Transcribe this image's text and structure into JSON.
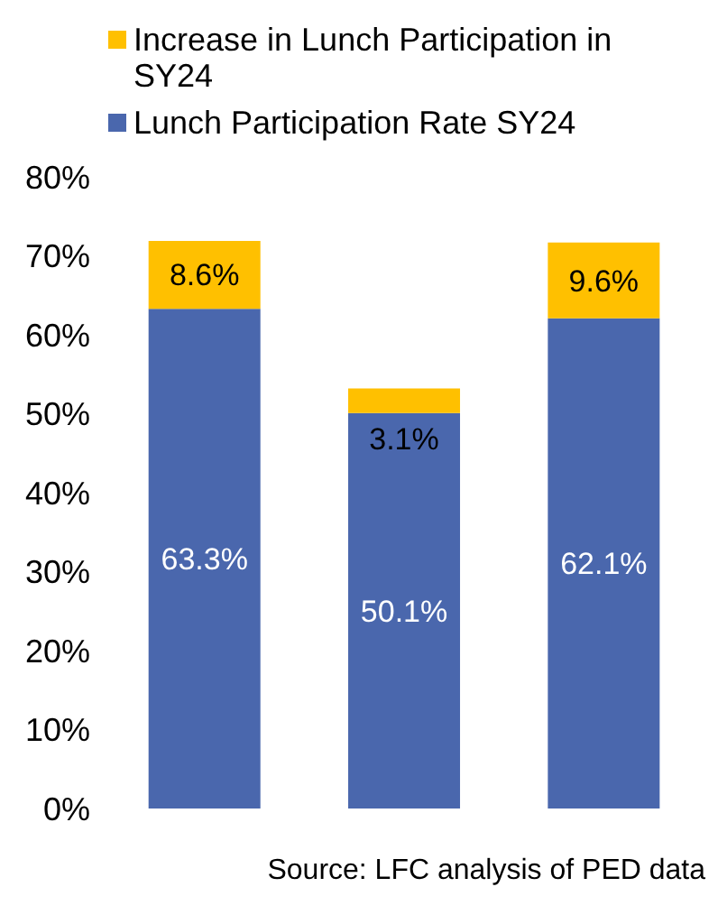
{
  "chart_data": {
    "type": "bar",
    "stacked": true,
    "categories": [
      null,
      null,
      null
    ],
    "series": [
      {
        "name": "Lunch Participation Rate SY24",
        "color": "#4a67ad",
        "values": [
          63.3,
          50.1,
          62.1
        ],
        "value_labels": [
          "63.3%",
          "50.1%",
          "62.1%"
        ]
      },
      {
        "name": "Increase in Lunch Participation in SY24",
        "color": "#ffc000",
        "values": [
          8.6,
          3.1,
          9.6
        ],
        "value_labels": [
          "8.6%",
          "3.1%",
          "9.6%"
        ]
      }
    ],
    "ylim": [
      0,
      80
    ],
    "yticks": [
      {
        "value": 0,
        "label": "0%"
      },
      {
        "value": 10,
        "label": "10%"
      },
      {
        "value": 20,
        "label": "20%"
      },
      {
        "value": 30,
        "label": "30%"
      },
      {
        "value": 40,
        "label": "40%"
      },
      {
        "value": 50,
        "label": "50%"
      },
      {
        "value": 60,
        "label": "60%"
      },
      {
        "value": 70,
        "label": "70%"
      },
      {
        "value": 80,
        "label": "80%"
      }
    ],
    "grid": false,
    "legend": "top",
    "annotations": [
      "Source: LFC analysis of PED data"
    ]
  }
}
